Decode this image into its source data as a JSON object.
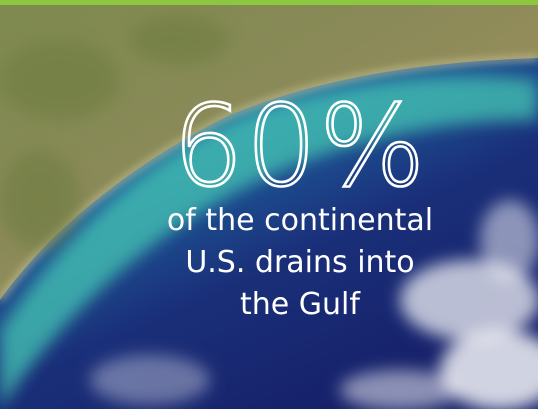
{
  "headline": "60%",
  "caption": {
    "lines": [
      "of the continental",
      "U.S. drains into",
      "the Gulf"
    ]
  }
}
